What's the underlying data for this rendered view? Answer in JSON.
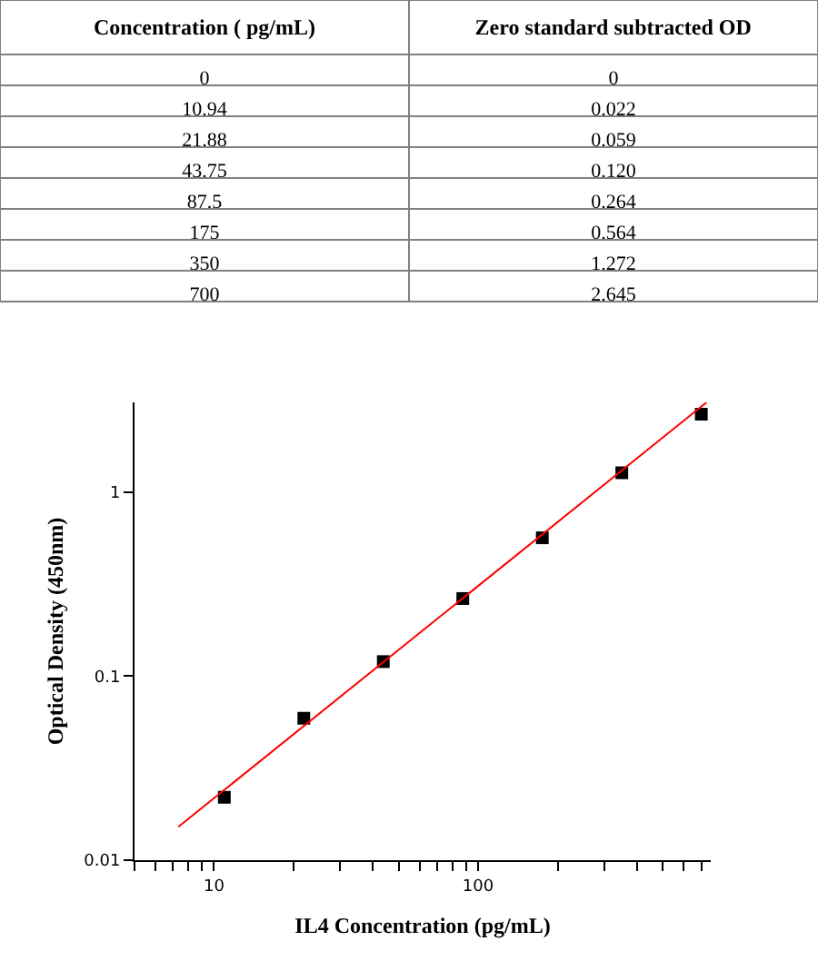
{
  "chart_data": [
    {
      "type": "other",
      "xlabel": "Concentration ( pg/mL)",
      "ylabel": "Zero standard subtracted OD",
      "categories": [
        "0",
        "10.94",
        "21.88",
        "43.75",
        "87.5",
        "175",
        "350",
        "700"
      ],
      "value_labels": [
        "0",
        "0.022",
        "0.059",
        "0.120",
        "0.264",
        "0.564",
        "1.272",
        "2.645"
      ]
    },
    {
      "type": "scatter",
      "xlabel": "IL4 Concentration (pg/mL)",
      "ylabel": "Optical Density (450nm)",
      "log": "xy",
      "marker": "square",
      "xlim": [
        5,
        760
      ],
      "ylim": [
        0.01,
        3.07
      ],
      "xticks": [
        {
          "value": 5,
          "label": null
        },
        {
          "value": 6,
          "label": null
        },
        {
          "value": 7,
          "label": null
        },
        {
          "value": 8,
          "label": null
        },
        {
          "value": 9,
          "label": null
        },
        10,
        {
          "value": 20,
          "label": null
        },
        {
          "value": 30,
          "label": null
        },
        {
          "value": 40,
          "label": null
        },
        {
          "value": 50,
          "label": null
        },
        {
          "value": 60,
          "label": null
        },
        {
          "value": 70,
          "label": null
        },
        {
          "value": 80,
          "label": null
        },
        {
          "value": 90,
          "label": null
        },
        100,
        {
          "value": 200,
          "label": null
        },
        {
          "value": 300,
          "label": null
        },
        {
          "value": 400,
          "label": null
        },
        {
          "value": 500,
          "label": null
        },
        {
          "value": 600,
          "label": null
        },
        {
          "value": 700,
          "label": null
        }
      ],
      "yticks": [
        0.01,
        0.1,
        1
      ],
      "x": [
        10.94,
        21.88,
        43.75,
        87.5,
        175,
        350,
        700
      ],
      "series": [
        {
          "type": "scatter",
          "color": "#000000",
          "values": [
            0.022,
            0.059,
            0.12,
            0.264,
            0.564,
            1.272,
            2.645
          ]
        },
        {
          "type": "line",
          "color": "#ff0000",
          "marker": "none",
          "x": [
            7.33,
            733
          ],
          "values": [
            0.0152,
            3.07
          ]
        }
      ]
    }
  ]
}
